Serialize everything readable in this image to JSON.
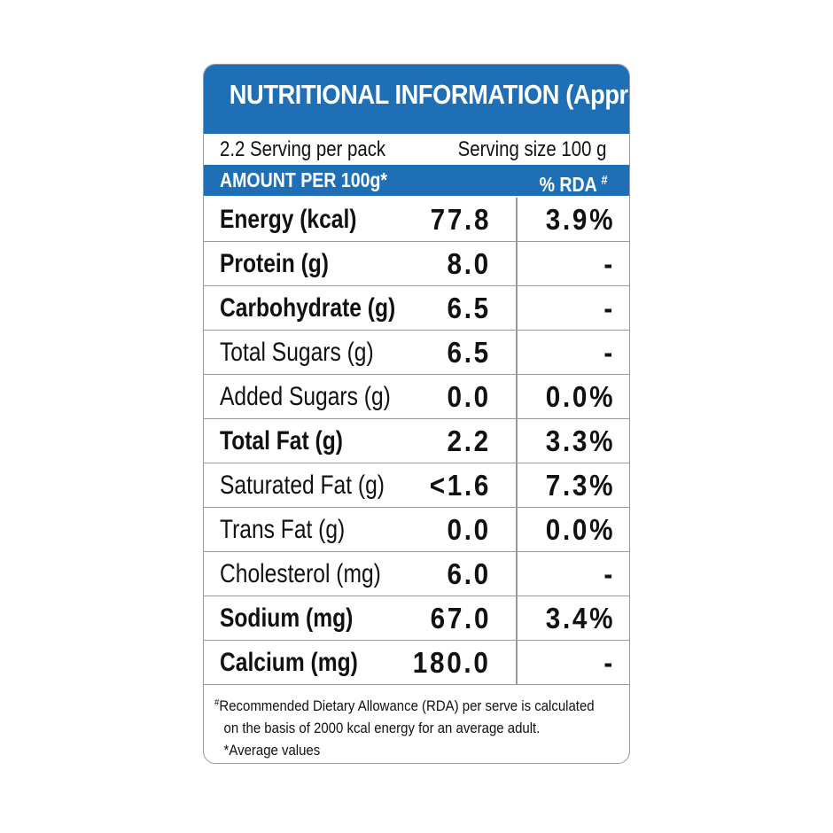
{
  "label": {
    "title": "NUTRITIONAL INFORMATION (Approx)",
    "serving_per_pack": "2.2 Serving per pack",
    "serving_size": "Serving size 100 g",
    "amount_header": "AMOUNT PER 100g*",
    "rda_header": "% RDA",
    "rda_header_mark": "#",
    "colors": {
      "header_blue": "#1e6fb5",
      "border": "#9a9a9a"
    },
    "rows": [
      {
        "name": "Energy (kcal)",
        "amount": "77.8",
        "rda": "3.9%",
        "bold": true
      },
      {
        "name": "Protein (g)",
        "amount": "8.0",
        "rda": "-",
        "bold": true
      },
      {
        "name": "Carbohydrate (g)",
        "amount": "6.5",
        "rda": "-",
        "bold": true
      },
      {
        "name": "Total Sugars  (g)",
        "amount": "6.5",
        "rda": "-",
        "bold": false
      },
      {
        "name": "Added Sugars  (g)",
        "amount": "0.0",
        "rda": "0.0%",
        "bold": false
      },
      {
        "name": "Total Fat (g)",
        "amount": "2.2",
        "rda": "3.3%",
        "bold": true
      },
      {
        "name": "Saturated Fat (g)",
        "amount": "<1.6",
        "rda": "7.3%",
        "bold": false
      },
      {
        "name": "Trans Fat (g)",
        "amount": "0.0",
        "rda": "0.0%",
        "bold": false
      },
      {
        "name": "Cholesterol (mg)",
        "amount": "6.0",
        "rda": "-",
        "bold": false
      },
      {
        "name": "Sodium (mg)",
        "amount": "67.0",
        "rda": "3.4%",
        "bold": true
      },
      {
        "name": "Calcium (mg)",
        "amount": "180.0",
        "rda": "-",
        "bold": true
      }
    ],
    "footnote": {
      "mark": "#",
      "line1": "Recommended Dietary Allowance (RDA) per serve is calculated",
      "line2": "on the basis of 2000 kcal energy for an average adult.",
      "line3": "*Average values"
    }
  }
}
